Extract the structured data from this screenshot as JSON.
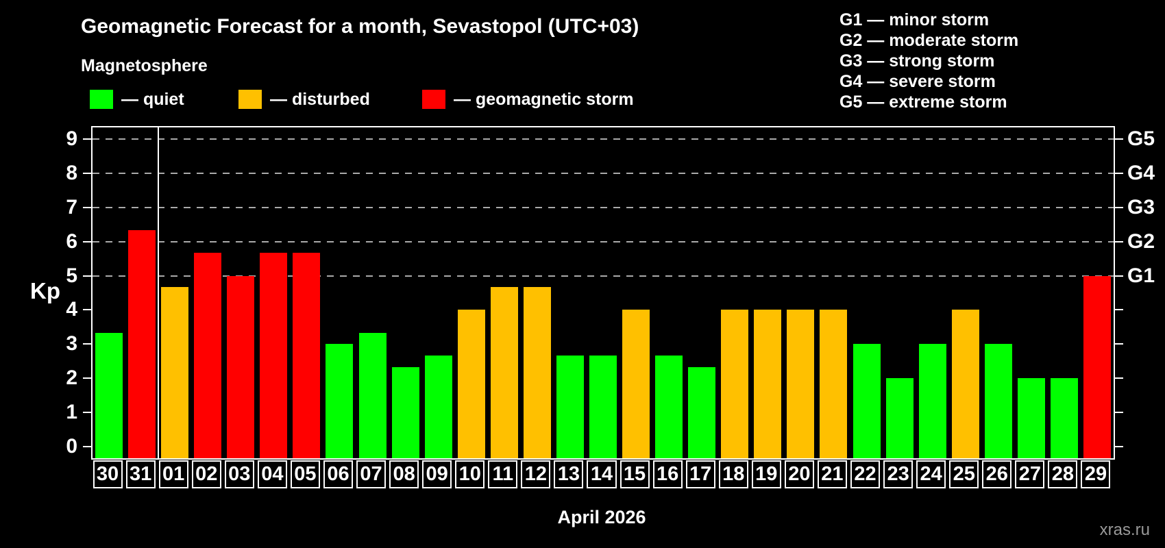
{
  "title": "Geomagnetic Forecast for a month, Sevastopol (UTC+03)",
  "subtitle": "Magnetosphere",
  "legend": {
    "items": [
      {
        "key": "quiet",
        "label": "— quiet",
        "color": "#00ff00",
        "x": 131
      },
      {
        "key": "disturbed",
        "label": "— disturbed",
        "color": "#ffc000",
        "x": 348
      },
      {
        "key": "storm",
        "label": "— geomagnetic storm",
        "color": "#ff0000",
        "x": 616
      }
    ]
  },
  "g_scale_legend": [
    "G1 — minor storm",
    "G2 — moderate storm",
    "G3 — strong storm",
    "G4 — severe storm",
    "G5 — extreme storm"
  ],
  "watermark": "xras.ru",
  "chart_data": {
    "type": "bar",
    "title": "Geomagnetic Forecast for a month, Sevastopol (UTC+03)",
    "xlabel": "April 2026",
    "ylabel": "Kp",
    "ylim": [
      -0.35,
      9.35
    ],
    "yticks": [
      0,
      1,
      2,
      3,
      4,
      5,
      6,
      7,
      8,
      9
    ],
    "gridlines_at": [
      5,
      6,
      7,
      8,
      9
    ],
    "grid": true,
    "legend_position": "top",
    "right_axis_labels": [
      {
        "value": 5,
        "label": "G1"
      },
      {
        "value": 6,
        "label": "G2"
      },
      {
        "value": 7,
        "label": "G3"
      },
      {
        "value": 8,
        "label": "G4"
      },
      {
        "value": 9,
        "label": "G5"
      }
    ],
    "categories": [
      "30",
      "31",
      "01",
      "02",
      "03",
      "04",
      "05",
      "06",
      "07",
      "08",
      "09",
      "10",
      "11",
      "12",
      "13",
      "14",
      "15",
      "16",
      "17",
      "18",
      "19",
      "20",
      "21",
      "22",
      "23",
      "24",
      "25",
      "26",
      "27",
      "28",
      "29"
    ],
    "values": [
      3.33,
      6.33,
      4.67,
      5.67,
      5.0,
      5.67,
      5.67,
      3.0,
      3.33,
      2.33,
      2.67,
      4.0,
      4.67,
      4.67,
      2.67,
      2.67,
      4.0,
      2.67,
      2.33,
      4.0,
      4.0,
      4.0,
      4.0,
      3.0,
      2.0,
      3.0,
      4.0,
      3.0,
      2.0,
      2.0,
      5.0
    ],
    "statuses": [
      "quiet",
      "storm",
      "disturbed",
      "storm",
      "storm",
      "storm",
      "storm",
      "quiet",
      "quiet",
      "quiet",
      "quiet",
      "disturbed",
      "disturbed",
      "disturbed",
      "quiet",
      "quiet",
      "disturbed",
      "quiet",
      "quiet",
      "disturbed",
      "disturbed",
      "disturbed",
      "disturbed",
      "quiet",
      "quiet",
      "quiet",
      "disturbed",
      "quiet",
      "quiet",
      "quiet",
      "storm"
    ],
    "status_colors": {
      "quiet": "#00ff00",
      "disturbed": "#ffc000",
      "storm": "#ff0000"
    },
    "month_separator_after_index": 1
  }
}
